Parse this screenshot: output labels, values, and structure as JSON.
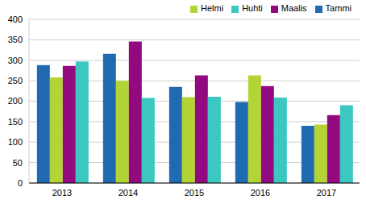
{
  "chart_data": {
    "type": "bar",
    "categories": [
      "2013",
      "2014",
      "2015",
      "2016",
      "2017"
    ],
    "series": [
      {
        "name": "Tammi",
        "color": "#1f6ab0",
        "values": [
          288,
          316,
          235,
          198,
          140
        ]
      },
      {
        "name": "Helmi",
        "color": "#b4d334",
        "values": [
          258,
          250,
          210,
          263,
          143
        ]
      },
      {
        "name": "Maalis",
        "color": "#930a80",
        "values": [
          286,
          346,
          263,
          237,
          166
        ]
      },
      {
        "name": "Huhti",
        "color": "#3cc7c0",
        "values": [
          297,
          208,
          211,
          209,
          190
        ]
      }
    ],
    "ylim": [
      0,
      400
    ],
    "yticks": [
      0,
      50,
      100,
      150,
      200,
      250,
      300,
      350,
      400
    ],
    "grid": true,
    "legend": "top-right"
  }
}
